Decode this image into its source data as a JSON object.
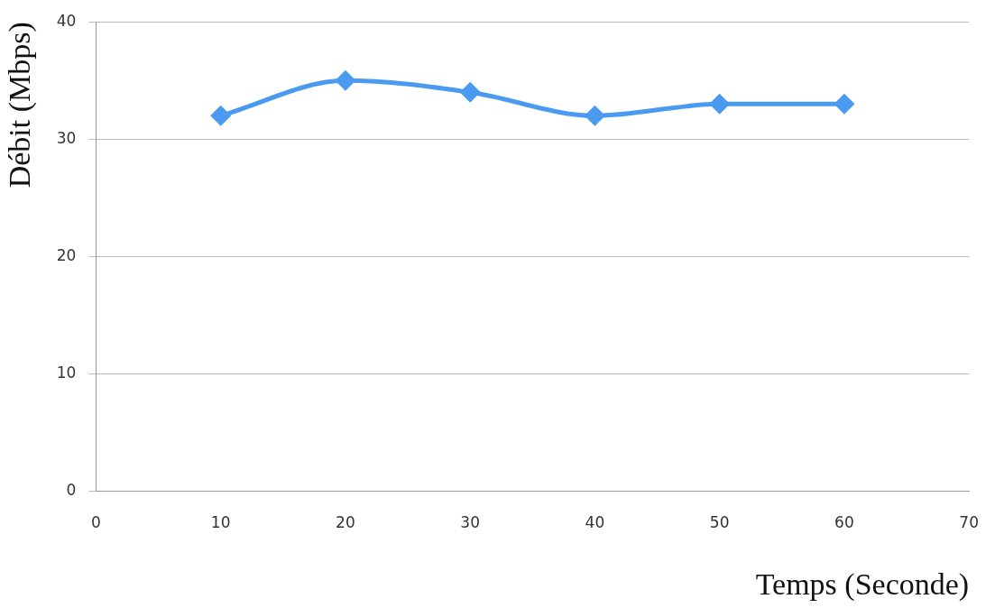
{
  "chart_data": {
    "type": "line",
    "xlabel": "Temps (Seconde)",
    "ylabel": "Débit (Mbps)",
    "x": [
      10,
      20,
      30,
      40,
      50,
      60
    ],
    "series": [
      {
        "color": "#4a9af0",
        "values": [
          32,
          35,
          34,
          32,
          33,
          33
        ]
      }
    ],
    "xlim": [
      0,
      70
    ],
    "xticks": [
      0,
      10,
      20,
      30,
      40,
      50,
      60,
      70
    ],
    "ylim": [
      0,
      40
    ],
    "yticks": [
      0,
      10,
      20,
      30,
      40
    ],
    "grid": "y",
    "marker": "diamond",
    "line_style": "solid",
    "legend": false
  }
}
